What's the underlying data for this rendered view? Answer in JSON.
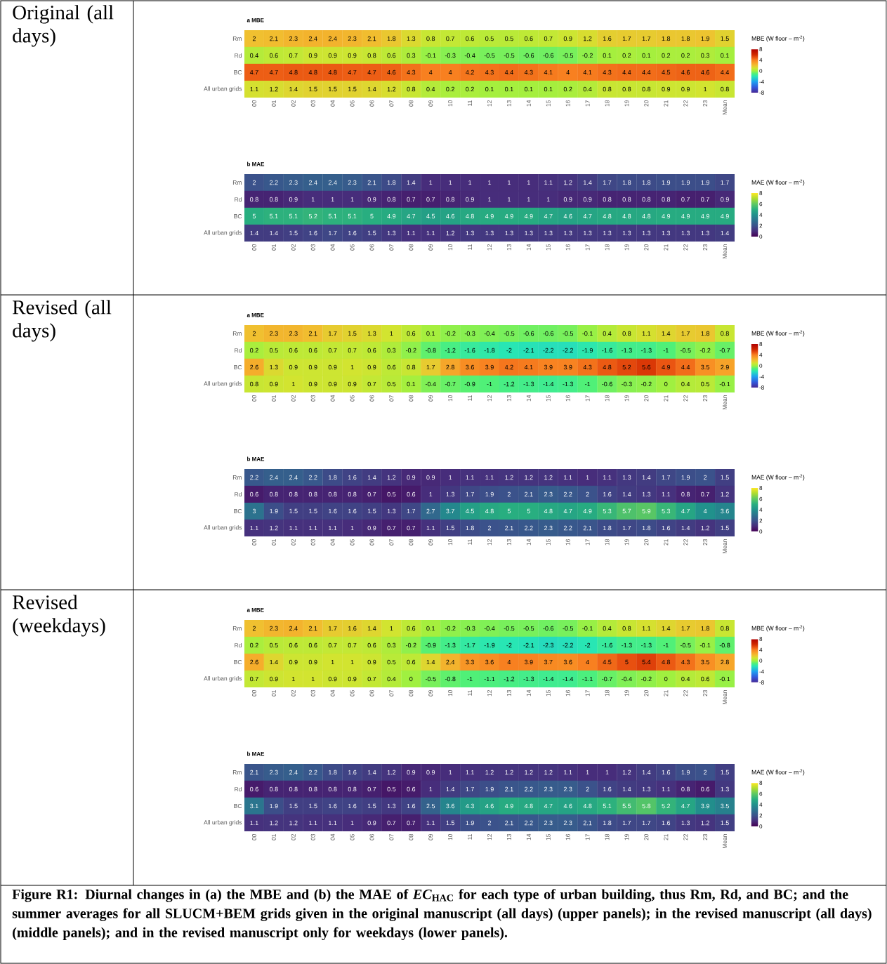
{
  "chart_data": [
    {
      "type": "heatmap",
      "title": "a MBE",
      "subtitle": "Original (all days)",
      "categories": [
        "00",
        "01",
        "02",
        "03",
        "04",
        "05",
        "06",
        "07",
        "08",
        "09",
        "10",
        "11",
        "12",
        "13",
        "14",
        "15",
        "16",
        "17",
        "18",
        "19",
        "20",
        "21",
        "22",
        "23",
        "Mean"
      ],
      "y_categories": [
        "Rm",
        "Rd",
        "BC",
        "All urban grids"
      ],
      "clim": [
        -8,
        8
      ],
      "cticks": [
        -8,
        -4,
        0,
        4,
        8
      ],
      "clabel": "MBE (W floor – m$^{-2}$)",
      "data_labels": true,
      "cells": [
        [
          2,
          2.1,
          2.3,
          2.4,
          2.4,
          2.3,
          2.1,
          1.8,
          1.3,
          0.8,
          0.7,
          0.6,
          0.5,
          0.5,
          0.6,
          0.7,
          0.9,
          1.2,
          1.6,
          1.7,
          1.7,
          1.8,
          1.8,
          1.9,
          1.5
        ],
        [
          0.4,
          0.6,
          0.7,
          0.9,
          0.9,
          0.9,
          0.8,
          0.6,
          0.3,
          -0.1,
          -0.3,
          -0.4,
          -0.5,
          -0.5,
          -0.6,
          -0.6,
          -0.5,
          -0.2,
          0.1,
          0.2,
          0.1,
          0.2,
          0.2,
          0.3,
          0.1
        ],
        [
          4.7,
          4.7,
          4.8,
          4.8,
          4.8,
          4.7,
          4.7,
          4.6,
          4.3,
          4,
          4,
          4.2,
          4.3,
          4.4,
          4.3,
          4.1,
          4,
          4.1,
          4.3,
          4.4,
          4.4,
          4.5,
          4.6,
          4.6,
          4.4
        ],
        [
          1.1,
          1.2,
          1.4,
          1.5,
          1.5,
          1.5,
          1.4,
          1.2,
          0.8,
          0.4,
          0.2,
          0.2,
          0.1,
          0.1,
          0.1,
          0.1,
          0.2,
          0.4,
          0.8,
          0.8,
          0.8,
          0.9,
          0.9,
          1,
          0.8
        ]
      ]
    },
    {
      "type": "heatmap",
      "title": "b MAE",
      "categories": [
        "00",
        "01",
        "02",
        "03",
        "04",
        "05",
        "06",
        "07",
        "08",
        "09",
        "10",
        "11",
        "12",
        "13",
        "14",
        "15",
        "16",
        "17",
        "18",
        "19",
        "20",
        "21",
        "22",
        "23",
        "Mean"
      ],
      "y_categories": [
        "Rm",
        "Rd",
        "BC",
        "All urban grids"
      ],
      "clim": [
        0,
        8
      ],
      "cticks": [
        0,
        2,
        4,
        6,
        8
      ],
      "clabel": "MAE (W floor – m$^{-2}$)",
      "data_labels": true,
      "cells": [
        [
          2,
          2.2,
          2.3,
          2.4,
          2.4,
          2.3,
          2.1,
          1.8,
          1.4,
          1,
          1,
          1,
          1,
          1,
          1,
          1.1,
          1.2,
          1.4,
          1.7,
          1.8,
          1.8,
          1.9,
          1.9,
          1.9,
          1.7
        ],
        [
          0.8,
          0.8,
          0.9,
          1,
          1,
          1,
          0.9,
          0.8,
          0.7,
          0.7,
          0.8,
          0.9,
          1,
          1,
          1,
          1,
          0.9,
          0.9,
          0.8,
          0.8,
          0.8,
          0.8,
          0.7,
          0.7,
          0.9
        ],
        [
          5,
          5.1,
          5.1,
          5.2,
          5.1,
          5.1,
          5,
          4.9,
          4.7,
          4.5,
          4.6,
          4.8,
          4.9,
          4.9,
          4.9,
          4.7,
          4.6,
          4.7,
          4.8,
          4.8,
          4.8,
          4.9,
          4.9,
          4.9,
          4.9
        ],
        [
          1.4,
          1.4,
          1.5,
          1.6,
          1.7,
          1.6,
          1.5,
          1.3,
          1.1,
          1.1,
          1.2,
          1.3,
          1.3,
          1.3,
          1.3,
          1.3,
          1.3,
          1.3,
          1.3,
          1.3,
          1.3,
          1.3,
          1.3,
          1.3,
          1.4
        ]
      ]
    },
    {
      "type": "heatmap",
      "title": "a MBE",
      "subtitle": "Revised (all days)",
      "categories": [
        "00",
        "01",
        "02",
        "03",
        "04",
        "05",
        "06",
        "07",
        "08",
        "09",
        "10",
        "11",
        "12",
        "13",
        "14",
        "15",
        "16",
        "17",
        "18",
        "19",
        "20",
        "21",
        "22",
        "23",
        "Mean"
      ],
      "y_categories": [
        "Rm",
        "Rd",
        "BC",
        "All urban grids"
      ],
      "clim": [
        -8,
        8
      ],
      "cticks": [
        -8,
        -4,
        0,
        4,
        8
      ],
      "clabel": "MBE (W floor – m$^{-2}$)",
      "data_labels": true,
      "cells": [
        [
          2,
          2.3,
          2.3,
          2.1,
          1.7,
          1.5,
          1.3,
          1,
          0.6,
          0.1,
          -0.2,
          -0.3,
          -0.4,
          -0.5,
          -0.6,
          -0.6,
          -0.5,
          -0.1,
          0.4,
          0.8,
          1.1,
          1.4,
          1.7,
          1.8,
          0.8
        ],
        [
          0.2,
          0.5,
          0.6,
          0.6,
          0.7,
          0.7,
          0.6,
          0.3,
          -0.2,
          -0.8,
          -1.2,
          -1.6,
          -1.8,
          -2,
          -2.1,
          -2.2,
          -2.2,
          -1.9,
          -1.6,
          -1.3,
          -1.3,
          -1,
          -0.5,
          -0.2,
          -0.7
        ],
        [
          2.6,
          1.3,
          0.9,
          0.9,
          0.9,
          1,
          0.9,
          0.6,
          0.8,
          1.7,
          2.8,
          3.6,
          3.9,
          4.2,
          4.1,
          3.9,
          3.9,
          4.3,
          4.8,
          5.2,
          5.6,
          4.9,
          4.4,
          3.5,
          2.9
        ],
        [
          0.8,
          0.9,
          1,
          0.9,
          0.9,
          0.9,
          0.7,
          0.5,
          0.1,
          -0.4,
          -0.7,
          -0.9,
          -1,
          -1.2,
          -1.3,
          -1.4,
          -1.3,
          -1,
          -0.6,
          -0.3,
          -0.2,
          0,
          0.4,
          0.5,
          -0.1
        ]
      ]
    },
    {
      "type": "heatmap",
      "title": "b MAE",
      "categories": [
        "00",
        "01",
        "02",
        "03",
        "04",
        "05",
        "06",
        "07",
        "08",
        "09",
        "10",
        "11",
        "12",
        "13",
        "14",
        "15",
        "16",
        "17",
        "18",
        "19",
        "20",
        "21",
        "22",
        "23",
        "Mean"
      ],
      "y_categories": [
        "Rm",
        "Rd",
        "BC",
        "All urban grids"
      ],
      "clim": [
        0,
        8
      ],
      "cticks": [
        0,
        2,
        4,
        6,
        8
      ],
      "clabel": "MAE (W floor – m$^{-2}$)",
      "data_labels": true,
      "cells": [
        [
          2.2,
          2.4,
          2.4,
          2.2,
          1.8,
          1.6,
          1.4,
          1.2,
          0.9,
          0.9,
          1,
          1.1,
          1.1,
          1.2,
          1.2,
          1.2,
          1.1,
          1,
          1.1,
          1.3,
          1.4,
          1.7,
          1.9,
          2,
          1.5
        ],
        [
          0.6,
          0.8,
          0.8,
          0.8,
          0.8,
          0.8,
          0.7,
          0.5,
          0.6,
          1,
          1.3,
          1.7,
          1.9,
          2,
          2.1,
          2.3,
          2.2,
          2,
          1.6,
          1.4,
          1.3,
          1.1,
          0.8,
          0.7,
          1.2
        ],
        [
          3,
          1.9,
          1.5,
          1.5,
          1.6,
          1.6,
          1.5,
          1.3,
          1.7,
          2.7,
          3.7,
          4.5,
          4.8,
          5,
          5,
          4.8,
          4.7,
          4.9,
          5.3,
          5.7,
          5.9,
          5.3,
          4.7,
          4,
          3.6
        ],
        [
          1.1,
          1.2,
          1.1,
          1.1,
          1.1,
          1,
          0.9,
          0.7,
          0.7,
          1.1,
          1.5,
          1.8,
          2,
          2.1,
          2.2,
          2.3,
          2.2,
          2.1,
          1.8,
          1.7,
          1.8,
          1.6,
          1.4,
          1.2,
          1.5
        ]
      ]
    },
    {
      "type": "heatmap",
      "title": "a MBE",
      "subtitle": "Revised (weekdays)",
      "categories": [
        "00",
        "01",
        "02",
        "03",
        "04",
        "05",
        "06",
        "07",
        "08",
        "09",
        "10",
        "11",
        "12",
        "13",
        "14",
        "15",
        "16",
        "17",
        "18",
        "19",
        "20",
        "21",
        "22",
        "23",
        "Mean"
      ],
      "y_categories": [
        "Rm",
        "Rd",
        "BC",
        "All urban grids"
      ],
      "clim": [
        -8,
        8
      ],
      "cticks": [
        -8,
        -4,
        0,
        4,
        8
      ],
      "clabel": "MBE (W floor – m$^{-2}$)",
      "data_labels": true,
      "cells": [
        [
          2,
          2.3,
          2.4,
          2.1,
          1.7,
          1.6,
          1.4,
          1,
          0.6,
          0.1,
          -0.2,
          -0.3,
          -0.4,
          -0.5,
          -0.5,
          -0.6,
          -0.5,
          -0.1,
          0.4,
          0.8,
          1.1,
          1.4,
          1.7,
          1.8,
          0.8
        ],
        [
          0.2,
          0.5,
          0.6,
          0.6,
          0.7,
          0.7,
          0.6,
          0.3,
          -0.2,
          -0.9,
          -1.3,
          -1.7,
          -1.9,
          -2,
          -2.1,
          -2.3,
          -2.2,
          -2,
          -1.6,
          -1.3,
          -1.3,
          -1,
          -0.5,
          -0.1,
          -0.8
        ],
        [
          2.6,
          1.4,
          0.9,
          0.9,
          1,
          1,
          0.9,
          0.5,
          0.6,
          1.4,
          2.4,
          3.3,
          3.6,
          4,
          3.9,
          3.7,
          3.6,
          4,
          4.5,
          5,
          5.4,
          4.8,
          4.3,
          3.5,
          2.8
        ],
        [
          0.7,
          0.9,
          1,
          1,
          0.9,
          0.9,
          0.7,
          0.4,
          0,
          -0.5,
          -0.8,
          -1,
          -1.1,
          -1.2,
          -1.3,
          -1.4,
          -1.4,
          -1.1,
          -0.7,
          -0.4,
          -0.2,
          0,
          0.4,
          0.6,
          -0.1
        ]
      ]
    },
    {
      "type": "heatmap",
      "title": "b MAE",
      "categories": [
        "00",
        "01",
        "02",
        "03",
        "04",
        "05",
        "06",
        "07",
        "08",
        "09",
        "10",
        "11",
        "12",
        "13",
        "14",
        "15",
        "16",
        "17",
        "18",
        "19",
        "20",
        "21",
        "22",
        "23",
        "Mean"
      ],
      "y_categories": [
        "Rm",
        "Rd",
        "BC",
        "All urban grids"
      ],
      "clim": [
        0,
        8
      ],
      "cticks": [
        0,
        2,
        4,
        6,
        8
      ],
      "clabel": "MAE (W floor – m$^{-2}$)",
      "data_labels": true,
      "cells": [
        [
          2.1,
          2.3,
          2.4,
          2.2,
          1.8,
          1.6,
          1.4,
          1.2,
          0.9,
          0.9,
          1,
          1.1,
          1.2,
          1.2,
          1.2,
          1.2,
          1.1,
          1,
          1,
          1.2,
          1.4,
          1.6,
          1.9,
          2,
          1.5
        ],
        [
          0.6,
          0.8,
          0.8,
          0.8,
          0.8,
          0.8,
          0.7,
          0.5,
          0.6,
          1,
          1.4,
          1.7,
          1.9,
          2.1,
          2.2,
          2.3,
          2.3,
          2,
          1.6,
          1.4,
          1.3,
          1.1,
          0.8,
          0.6,
          1.3
        ],
        [
          3.1,
          1.9,
          1.5,
          1.5,
          1.6,
          1.6,
          1.5,
          1.3,
          1.6,
          2.5,
          3.6,
          4.3,
          4.6,
          4.9,
          4.8,
          4.7,
          4.6,
          4.8,
          5.1,
          5.5,
          5.8,
          5.2,
          4.7,
          3.9,
          3.5
        ],
        [
          1.1,
          1.2,
          1.2,
          1.1,
          1.1,
          1,
          0.9,
          0.7,
          0.7,
          1.1,
          1.5,
          1.9,
          2,
          2.1,
          2.2,
          2.3,
          2.3,
          2.1,
          1.8,
          1.7,
          1.7,
          1.6,
          1.3,
          1.2,
          1.5
        ]
      ],
      "annotations": [
        "Figure R1: Diurnal changes in (a) the MBE and (b) the MAE of *EC*$_{HAC}$ for each type of urban building, thus Rm, Rd, and BC; and the summer averages for all SLUCM+BEM grids given in the original manuscript (all days) (upper panels); in the revised manuscript (all days) (middle panels); and in the revised manuscript only for weekdays (lower panels)."
      ]
    }
  ]
}
